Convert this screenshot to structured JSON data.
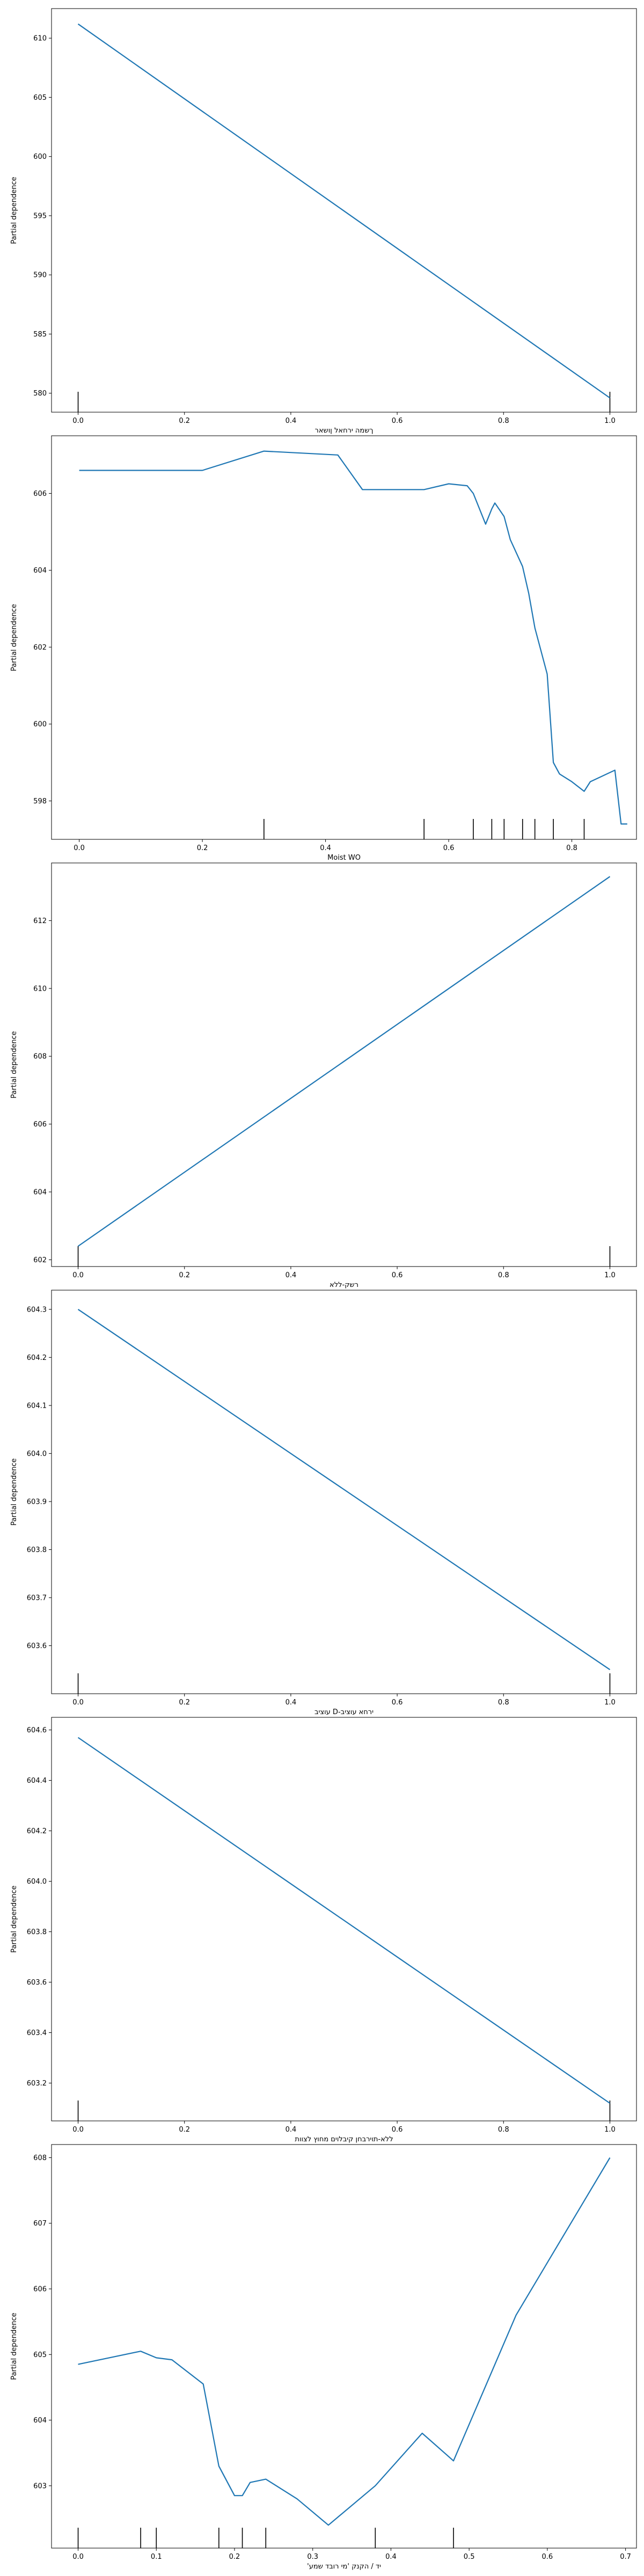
{
  "chart_data": [
    {
      "type": "line",
      "xlabel": "ךשמה ירחאל ןושאר",
      "ylabel": "Partial dependence",
      "xlim": [
        -0.05,
        1.05
      ],
      "ylim": [
        578.4,
        612.5
      ],
      "xticks": [
        0.0,
        0.2,
        0.4,
        0.6,
        0.8,
        1.0
      ],
      "xtick_labels": [
        "0.0",
        "0.2",
        "0.4",
        "0.6",
        "0.8",
        "1.0"
      ],
      "yticks": [
        580,
        585,
        590,
        595,
        600,
        605,
        610
      ],
      "ytick_labels": [
        "580",
        "585",
        "590",
        "595",
        "600",
        "605",
        "610"
      ],
      "x": [
        0.0,
        1.0
      ],
      "y": [
        611.2,
        579.6
      ],
      "rug": [
        0.0,
        1.0
      ]
    },
    {
      "type": "line",
      "xlabel": "Moist WO",
      "ylabel": "Partial dependence",
      "xlim": [
        -0.045,
        0.905
      ],
      "ylim": [
        597.0,
        607.5
      ],
      "xticks": [
        0.0,
        0.2,
        0.4,
        0.6,
        0.8
      ],
      "xtick_labels": [
        "0.0",
        "0.2",
        "0.4",
        "0.6",
        "0.8"
      ],
      "yticks": [
        598,
        600,
        602,
        604,
        606
      ],
      "ytick_labels": [
        "598",
        "600",
        "602",
        "604",
        "606"
      ],
      "x": [
        0.0,
        0.2,
        0.3,
        0.42,
        0.46,
        0.56,
        0.6,
        0.63,
        0.64,
        0.66,
        0.67,
        0.675,
        0.69,
        0.7,
        0.72,
        0.73,
        0.74,
        0.76,
        0.77,
        0.78,
        0.8,
        0.82,
        0.83,
        0.87,
        0.88,
        0.89
      ],
      "y": [
        606.6,
        606.6,
        607.1,
        607.0,
        606.1,
        606.1,
        606.25,
        606.2,
        606.0,
        605.2,
        605.6,
        605.75,
        605.4,
        604.8,
        604.1,
        603.4,
        602.5,
        601.3,
        599.0,
        598.7,
        598.5,
        598.25,
        598.5,
        598.8,
        597.4,
        597.4
      ],
      "rug": [
        0.3,
        0.56,
        0.64,
        0.67,
        0.69,
        0.72,
        0.74,
        0.77,
        0.82
      ]
    },
    {
      "type": "line",
      "xlabel": "רשק-ללא",
      "ylabel": "Partial dependence",
      "xlim": [
        -0.05,
        1.05
      ],
      "ylim": [
        601.8,
        613.7
      ],
      "xticks": [
        0.0,
        0.2,
        0.4,
        0.6,
        0.8,
        1.0
      ],
      "xtick_labels": [
        "0.0",
        "0.2",
        "0.4",
        "0.6",
        "0.8",
        "1.0"
      ],
      "yticks": [
        602,
        604,
        606,
        608,
        610,
        612
      ],
      "ytick_labels": [
        "602",
        "604",
        "606",
        "608",
        "610",
        "612"
      ],
      "x": [
        0.0,
        1.0
      ],
      "y": [
        602.4,
        613.3
      ],
      "rug": [
        0.0,
        1.0
      ]
    },
    {
      "type": "line",
      "xlabel": "עוציב D-ירחא עוציב",
      "ylabel": "Partial dependence",
      "xlim": [
        -0.05,
        1.05
      ],
      "ylim": [
        603.5,
        604.34
      ],
      "xticks": [
        0.0,
        0.2,
        0.4,
        0.6,
        0.8,
        1.0
      ],
      "xtick_labels": [
        "0.0",
        "0.2",
        "0.4",
        "0.6",
        "0.8",
        "1.0"
      ],
      "yticks": [
        603.6,
        603.7,
        603.8,
        603.9,
        604.0,
        604.1,
        604.2,
        604.3
      ],
      "ytick_labels": [
        "603.6",
        "603.7",
        "603.8",
        "603.9",
        "604.0",
        "604.1",
        "604.2",
        "604.3"
      ],
      "x": [
        0.0,
        1.0
      ],
      "y": [
        604.3,
        603.55
      ],
      "rug": [
        0.0,
        1.0
      ]
    },
    {
      "type": "line",
      "xlabel": "ללא-תוירבחן קיבלוים מחוץ לצוות",
      "ylabel": "Partial dependence",
      "xlim": [
        -0.05,
        1.05
      ],
      "ylim": [
        603.05,
        604.65
      ],
      "xticks": [
        0.0,
        0.2,
        0.4,
        0.6,
        0.8,
        1.0
      ],
      "xtick_labels": [
        "0.0",
        "0.2",
        "0.4",
        "0.6",
        "0.8",
        "1.0"
      ],
      "yticks": [
        603.2,
        603.4,
        603.6,
        603.8,
        604.0,
        604.2,
        604.4,
        604.6
      ],
      "ytick_labels": [
        "603.2",
        "603.4",
        "603.6",
        "603.8",
        "604.0",
        "604.2",
        "604.4",
        "604.6"
      ],
      "x": [
        0.0,
        1.0
      ],
      "y": [
        604.57,
        603.12
      ],
      "rug": [
        0.0,
        1.0
      ]
    },
    {
      "type": "line",
      "xlabel": "'יד / הקנק 'מי רובד שמע",
      "ylabel": "Partial dependence",
      "xlim": [
        -0.034,
        0.714
      ],
      "ylim": [
        602.05,
        608.2
      ],
      "xticks": [
        0.0,
        0.1,
        0.2,
        0.3,
        0.4,
        0.5,
        0.6,
        0.7
      ],
      "xtick_labels": [
        "0.0",
        "0.1",
        "0.2",
        "0.3",
        "0.4",
        "0.5",
        "0.6",
        "0.7"
      ],
      "yticks": [
        603,
        604,
        605,
        606,
        607,
        608
      ],
      "ytick_labels": [
        "603",
        "604",
        "605",
        "606",
        "607",
        "608"
      ],
      "x": [
        0.0,
        0.08,
        0.1,
        0.12,
        0.16,
        0.18,
        0.2,
        0.21,
        0.22,
        0.24,
        0.28,
        0.32,
        0.38,
        0.44,
        0.48,
        0.56,
        0.68
      ],
      "y": [
        604.85,
        605.05,
        604.95,
        604.92,
        604.55,
        603.3,
        602.85,
        602.85,
        603.05,
        603.1,
        602.8,
        602.4,
        603.0,
        603.8,
        603.38,
        605.6,
        608.0
      ],
      "rug": [
        0.0,
        0.08,
        0.1,
        0.18,
        0.21,
        0.24,
        0.38,
        0.48
      ]
    }
  ]
}
